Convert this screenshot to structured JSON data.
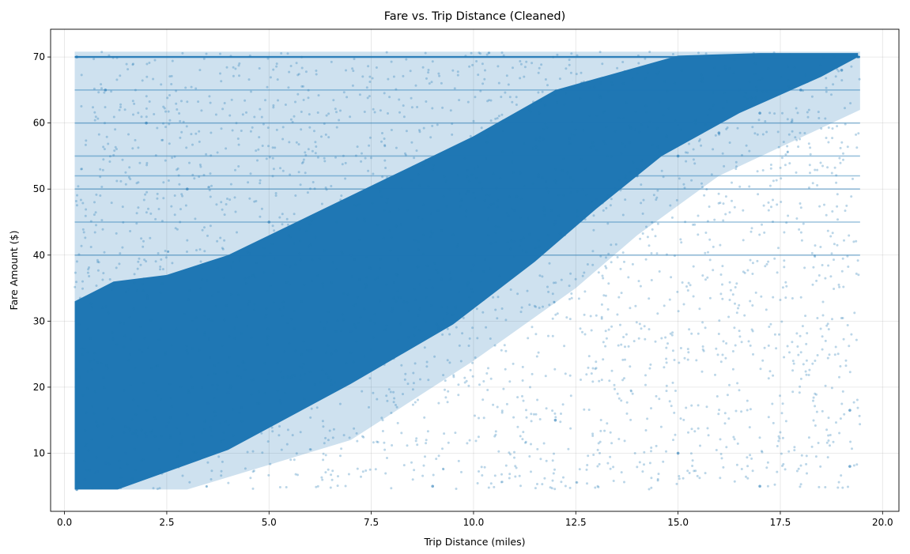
{
  "chart_data": {
    "type": "scatter",
    "title": "Fare vs. Trip Distance (Cleaned)",
    "xlabel": "Trip Distance (miles)",
    "ylabel": "Fare Amount ($)",
    "xlim": [
      -0.34,
      20.4
    ],
    "ylim": [
      1.2,
      74.2
    ],
    "x_ticks": [
      0.0,
      2.5,
      5.0,
      7.5,
      10.0,
      12.5,
      15.0,
      17.5,
      20.0
    ],
    "x_tick_labels": [
      "0.0",
      "2.5",
      "5.0",
      "7.5",
      "10.0",
      "12.5",
      "15.0",
      "17.5",
      "20.0"
    ],
    "y_ticks": [
      10,
      20,
      30,
      40,
      50,
      60,
      70
    ],
    "y_tick_labels": [
      "10",
      "20",
      "30",
      "40",
      "50",
      "60",
      "70"
    ],
    "grid": true,
    "point_color": "#1f77b4",
    "point_alpha": 0.3,
    "x_range": [
      0.25,
      19.45
    ],
    "y_range": [
      4.5,
      70.8
    ],
    "fare_cap": 70,
    "common_flat_fares": [
      40,
      45,
      50,
      52,
      55,
      60,
      65
    ],
    "points": [
      {
        "x": 0.3,
        "y": 4.5
      },
      {
        "x": 0.5,
        "y": 6.0
      },
      {
        "x": 0.8,
        "y": 7.2
      },
      {
        "x": 1.0,
        "y": 8.5
      },
      {
        "x": 1.5,
        "y": 10.0
      },
      {
        "x": 2.0,
        "y": 12.5
      },
      {
        "x": 2.5,
        "y": 14.0
      },
      {
        "x": 3.0,
        "y": 15.8
      },
      {
        "x": 3.5,
        "y": 17.5
      },
      {
        "x": 4.0,
        "y": 19.2
      },
      {
        "x": 5.0,
        "y": 22.0
      },
      {
        "x": 6.0,
        "y": 25.5
      },
      {
        "x": 7.0,
        "y": 28.5
      },
      {
        "x": 8.0,
        "y": 31.5
      },
      {
        "x": 9.0,
        "y": 35.0
      },
      {
        "x": 10.0,
        "y": 38.5
      },
      {
        "x": 11.0,
        "y": 42.0
      },
      {
        "x": 12.0,
        "y": 45.0
      },
      {
        "x": 13.0,
        "y": 48.5
      },
      {
        "x": 14.0,
        "y": 52.0
      },
      {
        "x": 15.0,
        "y": 55.0
      },
      {
        "x": 16.0,
        "y": 58.5
      },
      {
        "x": 17.0,
        "y": 61.5
      },
      {
        "x": 18.0,
        "y": 65.0
      },
      {
        "x": 19.0,
        "y": 68.0
      },
      {
        "x": 19.4,
        "y": 70.0
      },
      {
        "x": 0.3,
        "y": 70.0
      },
      {
        "x": 1.0,
        "y": 65.0
      },
      {
        "x": 2.0,
        "y": 60.0
      },
      {
        "x": 3.0,
        "y": 50.0
      },
      {
        "x": 5.0,
        "y": 45.0
      },
      {
        "x": 7.0,
        "y": 40.0
      },
      {
        "x": 17.0,
        "y": 5.0
      },
      {
        "x": 19.2,
        "y": 8.0
      },
      {
        "x": 19.2,
        "y": 16.5
      },
      {
        "x": 15.0,
        "y": 10.0
      },
      {
        "x": 12.0,
        "y": 15.0
      },
      {
        "x": 9.0,
        "y": 5.0
      }
    ]
  }
}
